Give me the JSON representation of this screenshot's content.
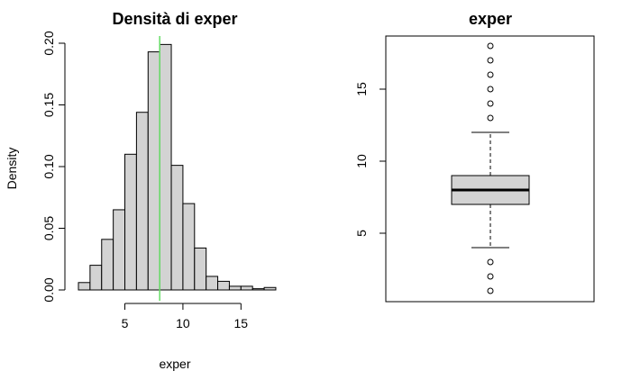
{
  "chart_data": [
    {
      "type": "bar",
      "title": "Densità di exper",
      "xlabel": "exper",
      "ylabel": "Density",
      "bin_edges": [
        1,
        2,
        3,
        4,
        5,
        6,
        7,
        8,
        9,
        10,
        11,
        12,
        13,
        14,
        15,
        16,
        17,
        18
      ],
      "values": [
        0.006,
        0.02,
        0.041,
        0.065,
        0.11,
        0.144,
        0.193,
        0.199,
        0.101,
        0.07,
        0.034,
        0.011,
        0.007,
        0.003,
        0.003,
        0.001,
        0.002
      ],
      "xticks": [
        5,
        10,
        15
      ],
      "yticks": [
        0.0,
        0.05,
        0.1,
        0.15,
        0.2
      ],
      "ytick_labels": [
        "0.00",
        "0.05",
        "0.10",
        "0.15",
        "0.20"
      ],
      "xlim": [
        1,
        18
      ],
      "ylim": [
        0,
        0.2
      ],
      "reference_line": {
        "x": 8,
        "color": "#66dd66"
      }
    },
    {
      "type": "boxplot",
      "title": "exper",
      "ylim": [
        1,
        18
      ],
      "yticks": [
        5,
        10,
        15
      ],
      "whisker_low": 4,
      "q1": 7,
      "median": 8,
      "q3": 9,
      "whisker_high": 12,
      "outliers": [
        1,
        2,
        3,
        13,
        14,
        15,
        16,
        17,
        18
      ]
    }
  ],
  "colors": {
    "bar_fill": "#d3d3d3",
    "box_fill": "#d3d3d3",
    "ref_line": "#66dd66"
  }
}
